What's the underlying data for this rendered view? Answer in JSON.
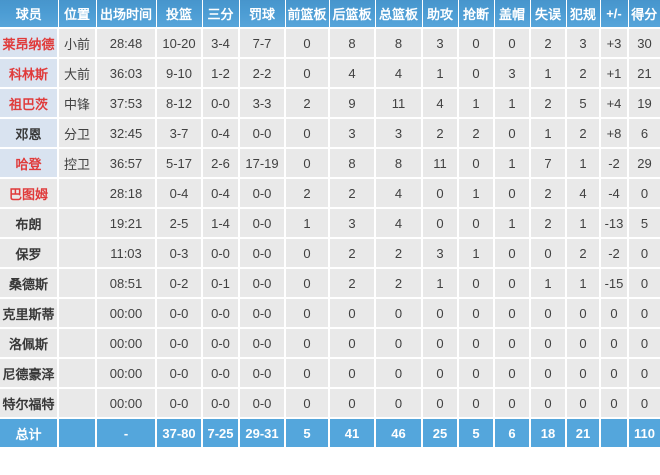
{
  "table": {
    "columns": [
      "球员",
      "位置",
      "出场时间",
      "投篮",
      "三分",
      "罚球",
      "前篮板",
      "后篮板",
      "总篮板",
      "助攻",
      "抢断",
      "盖帽",
      "失误",
      "犯规",
      "+/-",
      "得分"
    ],
    "rows": [
      {
        "name": "莱昂纳德",
        "link": true,
        "starter": true,
        "cells": [
          "小前",
          "28:48",
          "10-20",
          "3-4",
          "7-7",
          "0",
          "8",
          "8",
          "3",
          "0",
          "0",
          "2",
          "3",
          "+3",
          "30"
        ]
      },
      {
        "name": "科林斯",
        "link": true,
        "starter": true,
        "cells": [
          "大前",
          "36:03",
          "9-10",
          "1-2",
          "2-2",
          "0",
          "4",
          "4",
          "1",
          "0",
          "3",
          "1",
          "2",
          "+1",
          "21"
        ]
      },
      {
        "name": "祖巴茨",
        "link": true,
        "starter": true,
        "cells": [
          "中锋",
          "37:53",
          "8-12",
          "0-0",
          "3-3",
          "2",
          "9",
          "11",
          "4",
          "1",
          "1",
          "2",
          "5",
          "+4",
          "19"
        ]
      },
      {
        "name": "邓恩",
        "link": false,
        "starter": true,
        "cells": [
          "分卫",
          "32:45",
          "3-7",
          "0-4",
          "0-0",
          "0",
          "3",
          "3",
          "2",
          "2",
          "0",
          "1",
          "2",
          "+8",
          "6"
        ]
      },
      {
        "name": "哈登",
        "link": true,
        "starter": true,
        "cells": [
          "控卫",
          "36:57",
          "5-17",
          "2-6",
          "17-19",
          "0",
          "8",
          "8",
          "11",
          "0",
          "1",
          "7",
          "1",
          "-2",
          "29"
        ]
      },
      {
        "name": "巴图姆",
        "link": true,
        "starter": false,
        "cells": [
          "",
          "28:18",
          "0-4",
          "0-4",
          "0-0",
          "2",
          "2",
          "4",
          "0",
          "1",
          "0",
          "2",
          "4",
          "-4",
          "0"
        ]
      },
      {
        "name": "布朗",
        "link": false,
        "starter": false,
        "cells": [
          "",
          "19:21",
          "2-5",
          "1-4",
          "0-0",
          "1",
          "3",
          "4",
          "0",
          "0",
          "1",
          "2",
          "1",
          "-13",
          "5"
        ]
      },
      {
        "name": "保罗",
        "link": false,
        "starter": false,
        "cells": [
          "",
          "11:03",
          "0-3",
          "0-0",
          "0-0",
          "0",
          "2",
          "2",
          "3",
          "1",
          "0",
          "0",
          "2",
          "-2",
          "0"
        ]
      },
      {
        "name": "桑德斯",
        "link": false,
        "starter": false,
        "cells": [
          "",
          "08:51",
          "0-2",
          "0-1",
          "0-0",
          "0",
          "2",
          "2",
          "1",
          "0",
          "0",
          "1",
          "1",
          "-15",
          "0"
        ]
      },
      {
        "name": "克里斯蒂",
        "link": false,
        "starter": false,
        "cells": [
          "",
          "00:00",
          "0-0",
          "0-0",
          "0-0",
          "0",
          "0",
          "0",
          "0",
          "0",
          "0",
          "0",
          "0",
          "0",
          "0"
        ]
      },
      {
        "name": "洛佩斯",
        "link": false,
        "starter": false,
        "cells": [
          "",
          "00:00",
          "0-0",
          "0-0",
          "0-0",
          "0",
          "0",
          "0",
          "0",
          "0",
          "0",
          "0",
          "0",
          "0",
          "0"
        ]
      },
      {
        "name": "尼德豪泽",
        "link": false,
        "starter": false,
        "cells": [
          "",
          "00:00",
          "0-0",
          "0-0",
          "0-0",
          "0",
          "0",
          "0",
          "0",
          "0",
          "0",
          "0",
          "0",
          "0",
          "0"
        ]
      },
      {
        "name": "特尔福特",
        "link": false,
        "starter": false,
        "cells": [
          "",
          "00:00",
          "0-0",
          "0-0",
          "0-0",
          "0",
          "0",
          "0",
          "0",
          "0",
          "0",
          "0",
          "0",
          "0",
          "0"
        ]
      }
    ],
    "total": {
      "name": "总计",
      "cells": [
        "",
        "-",
        "37-80",
        "7-25",
        "29-31",
        "5",
        "41",
        "46",
        "25",
        "5",
        "6",
        "18",
        "21",
        "",
        "110"
      ]
    }
  },
  "colors": {
    "header_blue": "#4c9cd3",
    "total_blue": "#54a6dc",
    "body_cell": "#e9e9e9",
    "starter_name_cell": "#d9e3f0",
    "player_link_red": "#e03b3b",
    "text_dark": "#414141",
    "grid_white": "#ffffff"
  }
}
